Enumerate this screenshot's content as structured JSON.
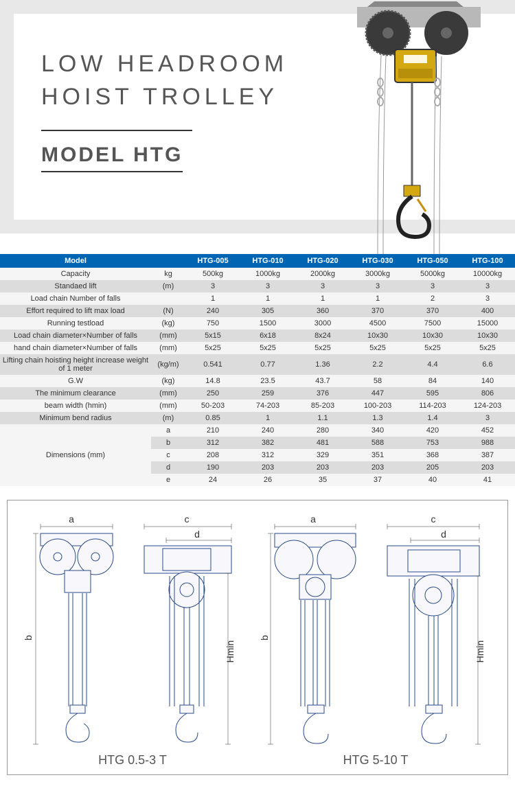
{
  "header": {
    "title_line1": "LOW HEADROOM",
    "title_line2": "HOIST TROLLEY",
    "model": "MODEL HTG"
  },
  "colors": {
    "header_border": "#e8e8e8",
    "table_header_bg": "#0066b3",
    "row_light": "#f5f5f5",
    "row_dark": "#dcdcdc",
    "tech_stroke": "#2a4a8a",
    "product_yellow": "#d4a810"
  },
  "table": {
    "header": [
      "Model",
      "",
      "HTG-005",
      "HTG-010",
      "HTG-020",
      "HTG-030",
      "HTG-050",
      "HTG-100"
    ],
    "rows": [
      {
        "label": "Capacity",
        "unit": "kg",
        "vals": [
          "500kg",
          "1000kg",
          "2000kg",
          "3000kg",
          "5000kg",
          "10000kg"
        ],
        "shade": "light"
      },
      {
        "label": "Standaed lift",
        "unit": "(m)",
        "vals": [
          "3",
          "3",
          "3",
          "3",
          "3",
          "3"
        ],
        "shade": "dark"
      },
      {
        "label": "Load chain Number of falls",
        "unit": "",
        "vals": [
          "1",
          "1",
          "1",
          "1",
          "2",
          "3"
        ],
        "shade": "light"
      },
      {
        "label": "Effort required to lift max load",
        "unit": "(N)",
        "vals": [
          "240",
          "305",
          "360",
          "370",
          "370",
          "400"
        ],
        "shade": "dark"
      },
      {
        "label": "Running testload",
        "unit": "(kg)",
        "vals": [
          "750",
          "1500",
          "3000",
          "4500",
          "7500",
          "15000"
        ],
        "shade": "light"
      },
      {
        "label": "Load chain diameter×Number of falls",
        "unit": "(mm)",
        "vals": [
          "5x15",
          "6x18",
          "8x24",
          "10x30",
          "10x30",
          "10x30"
        ],
        "shade": "dark"
      },
      {
        "label": "hand chain diameter×Number of falls",
        "unit": "(mm)",
        "vals": [
          "5x25",
          "5x25",
          "5x25",
          "5x25",
          "5x25",
          "5x25"
        ],
        "shade": "light"
      },
      {
        "label": "Lifting chain hoisting height increase weight of 1 meter",
        "unit": "(kg/m)",
        "vals": [
          "0.541",
          "0.77",
          "1.36",
          "2.2",
          "4.4",
          "6.6"
        ],
        "shade": "dark"
      },
      {
        "label": "G.W",
        "unit": "(kg)",
        "vals": [
          "14.8",
          "23.5",
          "43.7",
          "58",
          "84",
          "140"
        ],
        "shade": "light"
      },
      {
        "label": "The minimum clearance",
        "unit": "(mm)",
        "vals": [
          "250",
          "259",
          "376",
          "447",
          "595",
          "806"
        ],
        "shade": "dark"
      },
      {
        "label": "beam width (hmin)",
        "unit": "(mm)",
        "vals": [
          "50-203",
          "74-203",
          "85-203",
          "100-203",
          "114-203",
          "124-203"
        ],
        "shade": "light"
      },
      {
        "label": "Minimum bend radius",
        "unit": "(m)",
        "vals": [
          "0.85",
          "1",
          "1.1",
          "1.3",
          "1.4",
          "3"
        ],
        "shade": "dark"
      }
    ],
    "dimensions": {
      "label": "Dimensions (mm)",
      "rows": [
        {
          "key": "a",
          "vals": [
            "210",
            "240",
            "280",
            "340",
            "420",
            "452"
          ],
          "shade": "light"
        },
        {
          "key": "b",
          "vals": [
            "312",
            "382",
            "481",
            "588",
            "753",
            "988"
          ],
          "shade": "dark"
        },
        {
          "key": "c",
          "vals": [
            "208",
            "312",
            "329",
            "351",
            "368",
            "387"
          ],
          "shade": "light"
        },
        {
          "key": "d",
          "vals": [
            "190",
            "203",
            "203",
            "203",
            "205",
            "203"
          ],
          "shade": "dark"
        },
        {
          "key": "e",
          "vals": [
            "24",
            "26",
            "35",
            "37",
            "40",
            "41"
          ],
          "shade": "light"
        }
      ]
    }
  },
  "diagrams": {
    "left_caption": "HTG 0.5-3 T",
    "right_caption": "HTG 5-10 T",
    "dims": {
      "a": "a",
      "b": "b",
      "c": "c",
      "d": "d",
      "hmin": "Hmin"
    }
  }
}
